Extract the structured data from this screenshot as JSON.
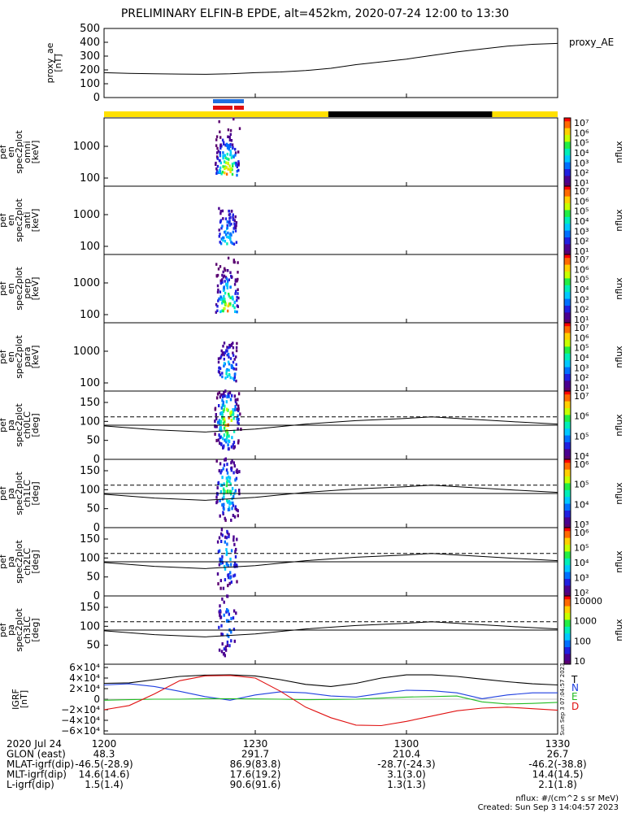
{
  "title": "PRELIMINARY ELFIN-B EPDE, alt=452km, 2020-07-24 12:00 to 13:30",
  "colors": {
    "sun": "#ffe000",
    "shadow": "#000000",
    "conj_blue": "#1f6fe0",
    "conj_red": "#e01010",
    "T": "#000000",
    "N": "#1f3fe0",
    "E": "#22bb22",
    "D": "#e01010"
  },
  "colorbar_colors": [
    "#ff0000",
    "#ff6a00",
    "#ffd000",
    "#c8ff00",
    "#22ee44",
    "#00eeb8",
    "#00c8ff",
    "#0070ff",
    "#2020e0",
    "#4a0090",
    "#5a0070"
  ],
  "chart_data": [
    {
      "type": "line",
      "name": "proxy_ae",
      "ylabel": "proxy_ae\n[nT]",
      "legend": "proxy_AE",
      "ylim": [
        0,
        500
      ],
      "yticks": [
        "500",
        "400",
        "300",
        "200",
        "100",
        "0"
      ],
      "ytick_values": [
        500,
        400,
        300,
        200,
        100,
        0
      ],
      "x": [
        0,
        5,
        10,
        15,
        20,
        25,
        30,
        35,
        40,
        45,
        50,
        55,
        60,
        65,
        70,
        75,
        80,
        85,
        90
      ],
      "values": [
        180,
        175,
        172,
        170,
        168,
        172,
        180,
        185,
        195,
        212,
        238,
        258,
        278,
        305,
        330,
        352,
        372,
        385,
        392
      ]
    },
    {
      "type": "heatmap",
      "name": "spec-omni",
      "ylabel": [
        "elb",
        "pef",
        "en",
        "spec2plot",
        "omni",
        "[keV]"
      ],
      "yticks": [
        "1000",
        "100"
      ],
      "colorbar_label": "nflux",
      "colorbar_ticks": [
        "10⁷",
        "10⁶",
        "10⁵",
        "10⁴",
        "10³",
        "10²",
        "10¹"
      ]
    },
    {
      "type": "heatmap",
      "name": "spec-anti",
      "ylabel": [
        "elb",
        "pef",
        "en",
        "spec2plot",
        "anti",
        "[keV]"
      ],
      "yticks": [
        "1000",
        "100"
      ],
      "colorbar_label": "nflux",
      "colorbar_ticks": [
        "10⁷",
        "10⁶",
        "10⁵",
        "10⁴",
        "10³",
        "10²",
        "10¹"
      ]
    },
    {
      "type": "heatmap",
      "name": "spec-perp",
      "ylabel": [
        "elb",
        "pef",
        "en",
        "spec2plot",
        "perp",
        "[keV]"
      ],
      "yticks": [
        "1000",
        "100"
      ],
      "colorbar_label": "nflux",
      "colorbar_ticks": [
        "10⁷",
        "10⁶",
        "10⁵",
        "10⁴",
        "10³",
        "10²",
        "10¹"
      ]
    },
    {
      "type": "heatmap",
      "name": "spec-para",
      "ylabel": [
        "elb",
        "pef",
        "en",
        "spec2plot",
        "para",
        "[keV]"
      ],
      "yticks": [
        "1000",
        "100"
      ],
      "colorbar_label": "nflux",
      "colorbar_ticks": [
        "10⁷",
        "10⁶",
        "10⁵",
        "10⁴",
        "10³",
        "10²",
        "10¹"
      ]
    },
    {
      "type": "heatmap",
      "name": "pa-ch0",
      "ylabel": [
        "elb",
        "pef",
        "pa",
        "spec2plot",
        "ch0LC",
        "[deg]"
      ],
      "yticks": [
        "150",
        "100",
        "50",
        "0"
      ],
      "ytick_values": [
        150,
        100,
        50,
        0
      ],
      "ylim": [
        0,
        180
      ],
      "colorbar_label": "nflux",
      "colorbar_ticks": [
        "10⁷",
        "10⁶",
        "10⁵",
        "10⁴"
      ],
      "loss_cone_dashed_deg": 112
    },
    {
      "type": "heatmap",
      "name": "pa-ch1",
      "ylabel": [
        "elb",
        "pef",
        "pa",
        "spec2plot",
        "ch1LC",
        "[deg]"
      ],
      "yticks": [
        "150",
        "100",
        "50",
        "0"
      ],
      "ytick_values": [
        150,
        100,
        50,
        0
      ],
      "ylim": [
        0,
        180
      ],
      "colorbar_label": "nflux",
      "colorbar_ticks": [
        "10⁶",
        "10⁵",
        "10⁴",
        "10³"
      ],
      "loss_cone_dashed_deg": 112
    },
    {
      "type": "heatmap",
      "name": "pa-ch2",
      "ylabel": [
        "elb",
        "pef",
        "pa",
        "spec2plot",
        "ch2LC",
        "[deg]"
      ],
      "yticks": [
        "150",
        "100",
        "50",
        "0"
      ],
      "ytick_values": [
        150,
        100,
        50,
        0
      ],
      "ylim": [
        0,
        180
      ],
      "colorbar_label": "nflux",
      "colorbar_ticks": [
        "10⁶",
        "10⁵",
        "10⁴",
        "10³",
        "10²"
      ],
      "loss_cone_dashed_deg": 112
    },
    {
      "type": "heatmap",
      "name": "pa-ch3",
      "ylabel": [
        "elb",
        "pef",
        "pa",
        "spec2plot",
        "ch3LC",
        "[deg]"
      ],
      "yticks": [
        "150",
        "100",
        "50"
      ],
      "ytick_values": [
        150,
        100,
        50
      ],
      "ylim": [
        0,
        180
      ],
      "colorbar_label": "nflux",
      "colorbar_ticks": [
        "10000",
        "1000",
        "100",
        "10"
      ],
      "loss_cone_dashed_deg": 112
    },
    {
      "type": "line",
      "name": "igrf",
      "ylabel": "IGRF\n[nT]",
      "yticks": [
        "6×10⁴",
        "4×10⁴",
        "2×10⁴",
        "0",
        "−2×10⁴",
        "−4×10⁴",
        "−6×10⁴"
      ],
      "ytick_values": [
        60000,
        40000,
        20000,
        0,
        -20000,
        -40000,
        -60000
      ],
      "ylim": [
        -60000,
        60000
      ],
      "x": [
        0,
        5,
        10,
        15,
        20,
        25,
        30,
        35,
        40,
        45,
        50,
        55,
        60,
        65,
        70,
        75,
        80,
        85,
        90
      ],
      "series": [
        {
          "name": "T",
          "values": [
            30000,
            31000,
            37000,
            43000,
            45500,
            46000,
            44000,
            37000,
            28000,
            24000,
            30000,
            40000,
            46000,
            46000,
            43000,
            38000,
            33000,
            29000,
            27000
          ]
        },
        {
          "name": "N",
          "values": [
            27000,
            29000,
            24000,
            15000,
            5000,
            -2000,
            8000,
            14000,
            12000,
            6000,
            4000,
            11000,
            17000,
            16000,
            12000,
            1000,
            8000,
            12000,
            12000
          ]
        },
        {
          "name": "E",
          "values": [
            -2000,
            -1000,
            0,
            0,
            1000,
            1000,
            500,
            0,
            -1000,
            -500,
            0,
            2000,
            4000,
            5000,
            6000,
            -5000,
            -9000,
            -8000,
            -6000
          ]
        },
        {
          "name": "D",
          "values": [
            -20000,
            -12000,
            10000,
            35000,
            44000,
            45000,
            40000,
            15000,
            -15000,
            -35000,
            -49000,
            -50000,
            -42000,
            -32000,
            -22000,
            -17000,
            -15000,
            -18000,
            -21000
          ]
        }
      ]
    }
  ],
  "side_stamp": "Sun Sep  3 07:04:57 2023",
  "xaxis": {
    "rows": [
      [
        "2020 Jul 24",
        "1200",
        "1230",
        "1300",
        "1330"
      ],
      [
        "GLON (east)",
        "48.3",
        "291.7",
        "210.4",
        "26.7"
      ],
      [
        "MLAT-igrf(dip)",
        "-46.5(-28.9)",
        "86.9(83.8)",
        "-28.7(-24.3)",
        "-46.2(-38.8)"
      ],
      [
        "MLT-igrf(dip)",
        "14.6(14.6)",
        "17.6(19.2)",
        "3.1(3.0)",
        "14.4(14.5)"
      ],
      [
        "L-igrf(dip)",
        "1.5(1.4)",
        "90.6(91.6)",
        "1.3(1.3)",
        "2.1(1.8)"
      ]
    ]
  },
  "footer": {
    "units": "nflux: #/(cm^2 s sr MeV)",
    "created": "Created: Sun Sep  3 14:04:57 2023"
  }
}
